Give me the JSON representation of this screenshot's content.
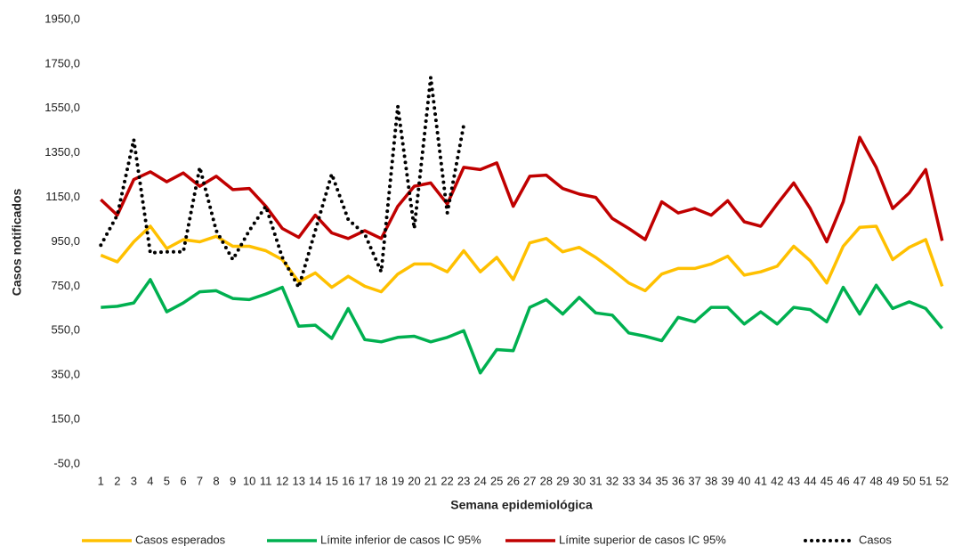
{
  "chart_data": {
    "type": "line",
    "x_label": "Semana epidemiológica",
    "y_label": "Casos notificados",
    "categories": [
      "1",
      "2",
      "3",
      "4",
      "5",
      "6",
      "7",
      "8",
      "9",
      "10",
      "11",
      "12",
      "13",
      "14",
      "15",
      "16",
      "17",
      "18",
      "19",
      "20",
      "21",
      "22",
      "23",
      "24",
      "25",
      "26",
      "27",
      "28",
      "29",
      "30",
      "31",
      "32",
      "33",
      "34",
      "35",
      "36",
      "37",
      "38",
      "39",
      "40",
      "41",
      "42",
      "43",
      "44",
      "45",
      "46",
      "47",
      "48",
      "49",
      "50",
      "51",
      "52"
    ],
    "ylim": [
      -50,
      1950
    ],
    "yticks": [
      {
        "value": -50,
        "label": "-50,0"
      },
      {
        "value": 150,
        "label": "150,0"
      },
      {
        "value": 350,
        "label": "350,0"
      },
      {
        "value": 550,
        "label": "550,0"
      },
      {
        "value": 750,
        "label": "750,0"
      },
      {
        "value": 950,
        "label": "950,0"
      },
      {
        "value": 1150,
        "label": "1150,0"
      },
      {
        "value": 1350,
        "label": "1350,0"
      },
      {
        "value": 1550,
        "label": "1550,0"
      },
      {
        "value": 1750,
        "label": "1750,0"
      },
      {
        "value": 1950,
        "label": "1950,0"
      }
    ],
    "grid": false,
    "legend": "bottom",
    "series": [
      {
        "name": "Casos esperados",
        "color": "#ffc000",
        "style": "solid",
        "values": [
          890,
          860,
          950,
          1020,
          920,
          960,
          950,
          975,
          930,
          930,
          910,
          870,
          770,
          810,
          745,
          795,
          750,
          725,
          805,
          850,
          850,
          815,
          910,
          815,
          880,
          780,
          945,
          965,
          905,
          925,
          880,
          825,
          765,
          730,
          805,
          830,
          830,
          850,
          885,
          800,
          815,
          840,
          930,
          865,
          765,
          930,
          1015,
          1020,
          870,
          925,
          960,
          750
        ]
      },
      {
        "name": "Límite inferior de casos IC 95%",
        "color": "#00b050",
        "style": "solid",
        "values": [
          655,
          660,
          675,
          780,
          635,
          675,
          725,
          730,
          695,
          690,
          715,
          745,
          570,
          575,
          515,
          650,
          510,
          500,
          520,
          525,
          500,
          520,
          550,
          360,
          465,
          460,
          655,
          690,
          625,
          700,
          630,
          620,
          540,
          525,
          505,
          610,
          590,
          655,
          655,
          580,
          635,
          580,
          655,
          645,
          590,
          745,
          625,
          755,
          650,
          680,
          650,
          560
        ]
      },
      {
        "name": "Límite superior de casos IC 95%",
        "color": "#c00000",
        "style": "solid",
        "values": [
          1140,
          1070,
          1230,
          1265,
          1220,
          1260,
          1200,
          1245,
          1185,
          1190,
          1110,
          1010,
          970,
          1070,
          990,
          965,
          1000,
          965,
          1110,
          1200,
          1215,
          1120,
          1285,
          1275,
          1305,
          1110,
          1245,
          1250,
          1190,
          1165,
          1150,
          1055,
          1010,
          960,
          1130,
          1080,
          1100,
          1070,
          1135,
          1040,
          1020,
          1120,
          1215,
          1100,
          950,
          1130,
          1420,
          1285,
          1100,
          1170,
          1275,
          955
        ]
      },
      {
        "name": "Casos",
        "color": "#000000",
        "style": "dotted",
        "values": [
          935,
          1070,
          1410,
          900,
          905,
          905,
          1285,
          1000,
          870,
          1000,
          1110,
          880,
          745,
          1000,
          1255,
          1050,
          985,
          815,
          1560,
          1010,
          1690,
          1080,
          1475,
          null,
          null,
          null,
          null,
          null,
          null,
          null,
          null,
          null,
          null,
          null,
          null,
          null,
          null,
          null,
          null,
          null,
          null,
          null,
          null,
          null,
          null,
          null,
          null,
          null,
          null,
          null,
          null,
          null
        ]
      }
    ]
  }
}
